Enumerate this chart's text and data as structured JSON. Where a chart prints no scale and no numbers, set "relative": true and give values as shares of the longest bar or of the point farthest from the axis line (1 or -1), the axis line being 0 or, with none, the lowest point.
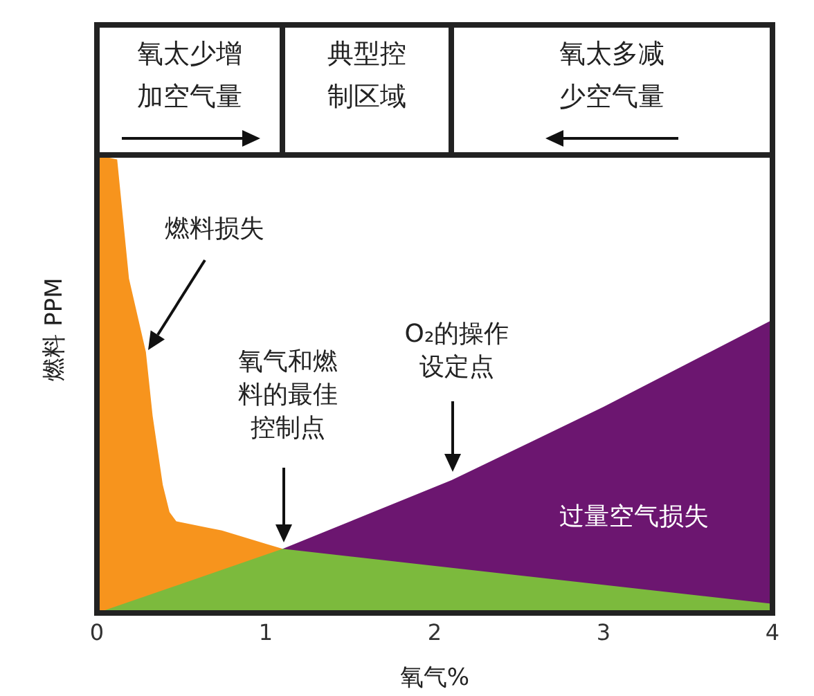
{
  "chart_data": {
    "type": "area",
    "relative": true,
    "xlabel": "氧气%",
    "ylabel": "燃料 PPM",
    "xlim": [
      0,
      4
    ],
    "xticks": [
      0,
      1,
      2,
      3,
      4
    ],
    "grid": false,
    "series": [
      {
        "name": "燃料损失",
        "color": "#f7941d",
        "x": [
          0,
          0.12,
          0.19,
          0.29,
          0.33,
          0.39,
          0.43,
          0.47,
          0.74,
          1.01,
          1.1
        ],
        "values": [
          1,
          0.99,
          0.73,
          0.57,
          0.43,
          0.28,
          0.22,
          0.2,
          0.18,
          0.15,
          0.14
        ]
      },
      {
        "name": "过量空气损失",
        "color": "#6c1670",
        "x": [
          1.1,
          2.1,
          3,
          4
        ],
        "values": [
          0.14,
          0.29,
          0.45,
          0.64
        ]
      },
      {
        "color": "#7cba3d",
        "x": [
          0,
          1.1,
          4
        ],
        "values": [
          0,
          0.14,
          0.02
        ]
      }
    ],
    "annotations": [
      "氧太少增加空气量",
      "典型控制区域",
      "氧太多减少空气量",
      "氧气和燃料的最佳控制点",
      "O₂的操作设定点"
    ]
  }
}
